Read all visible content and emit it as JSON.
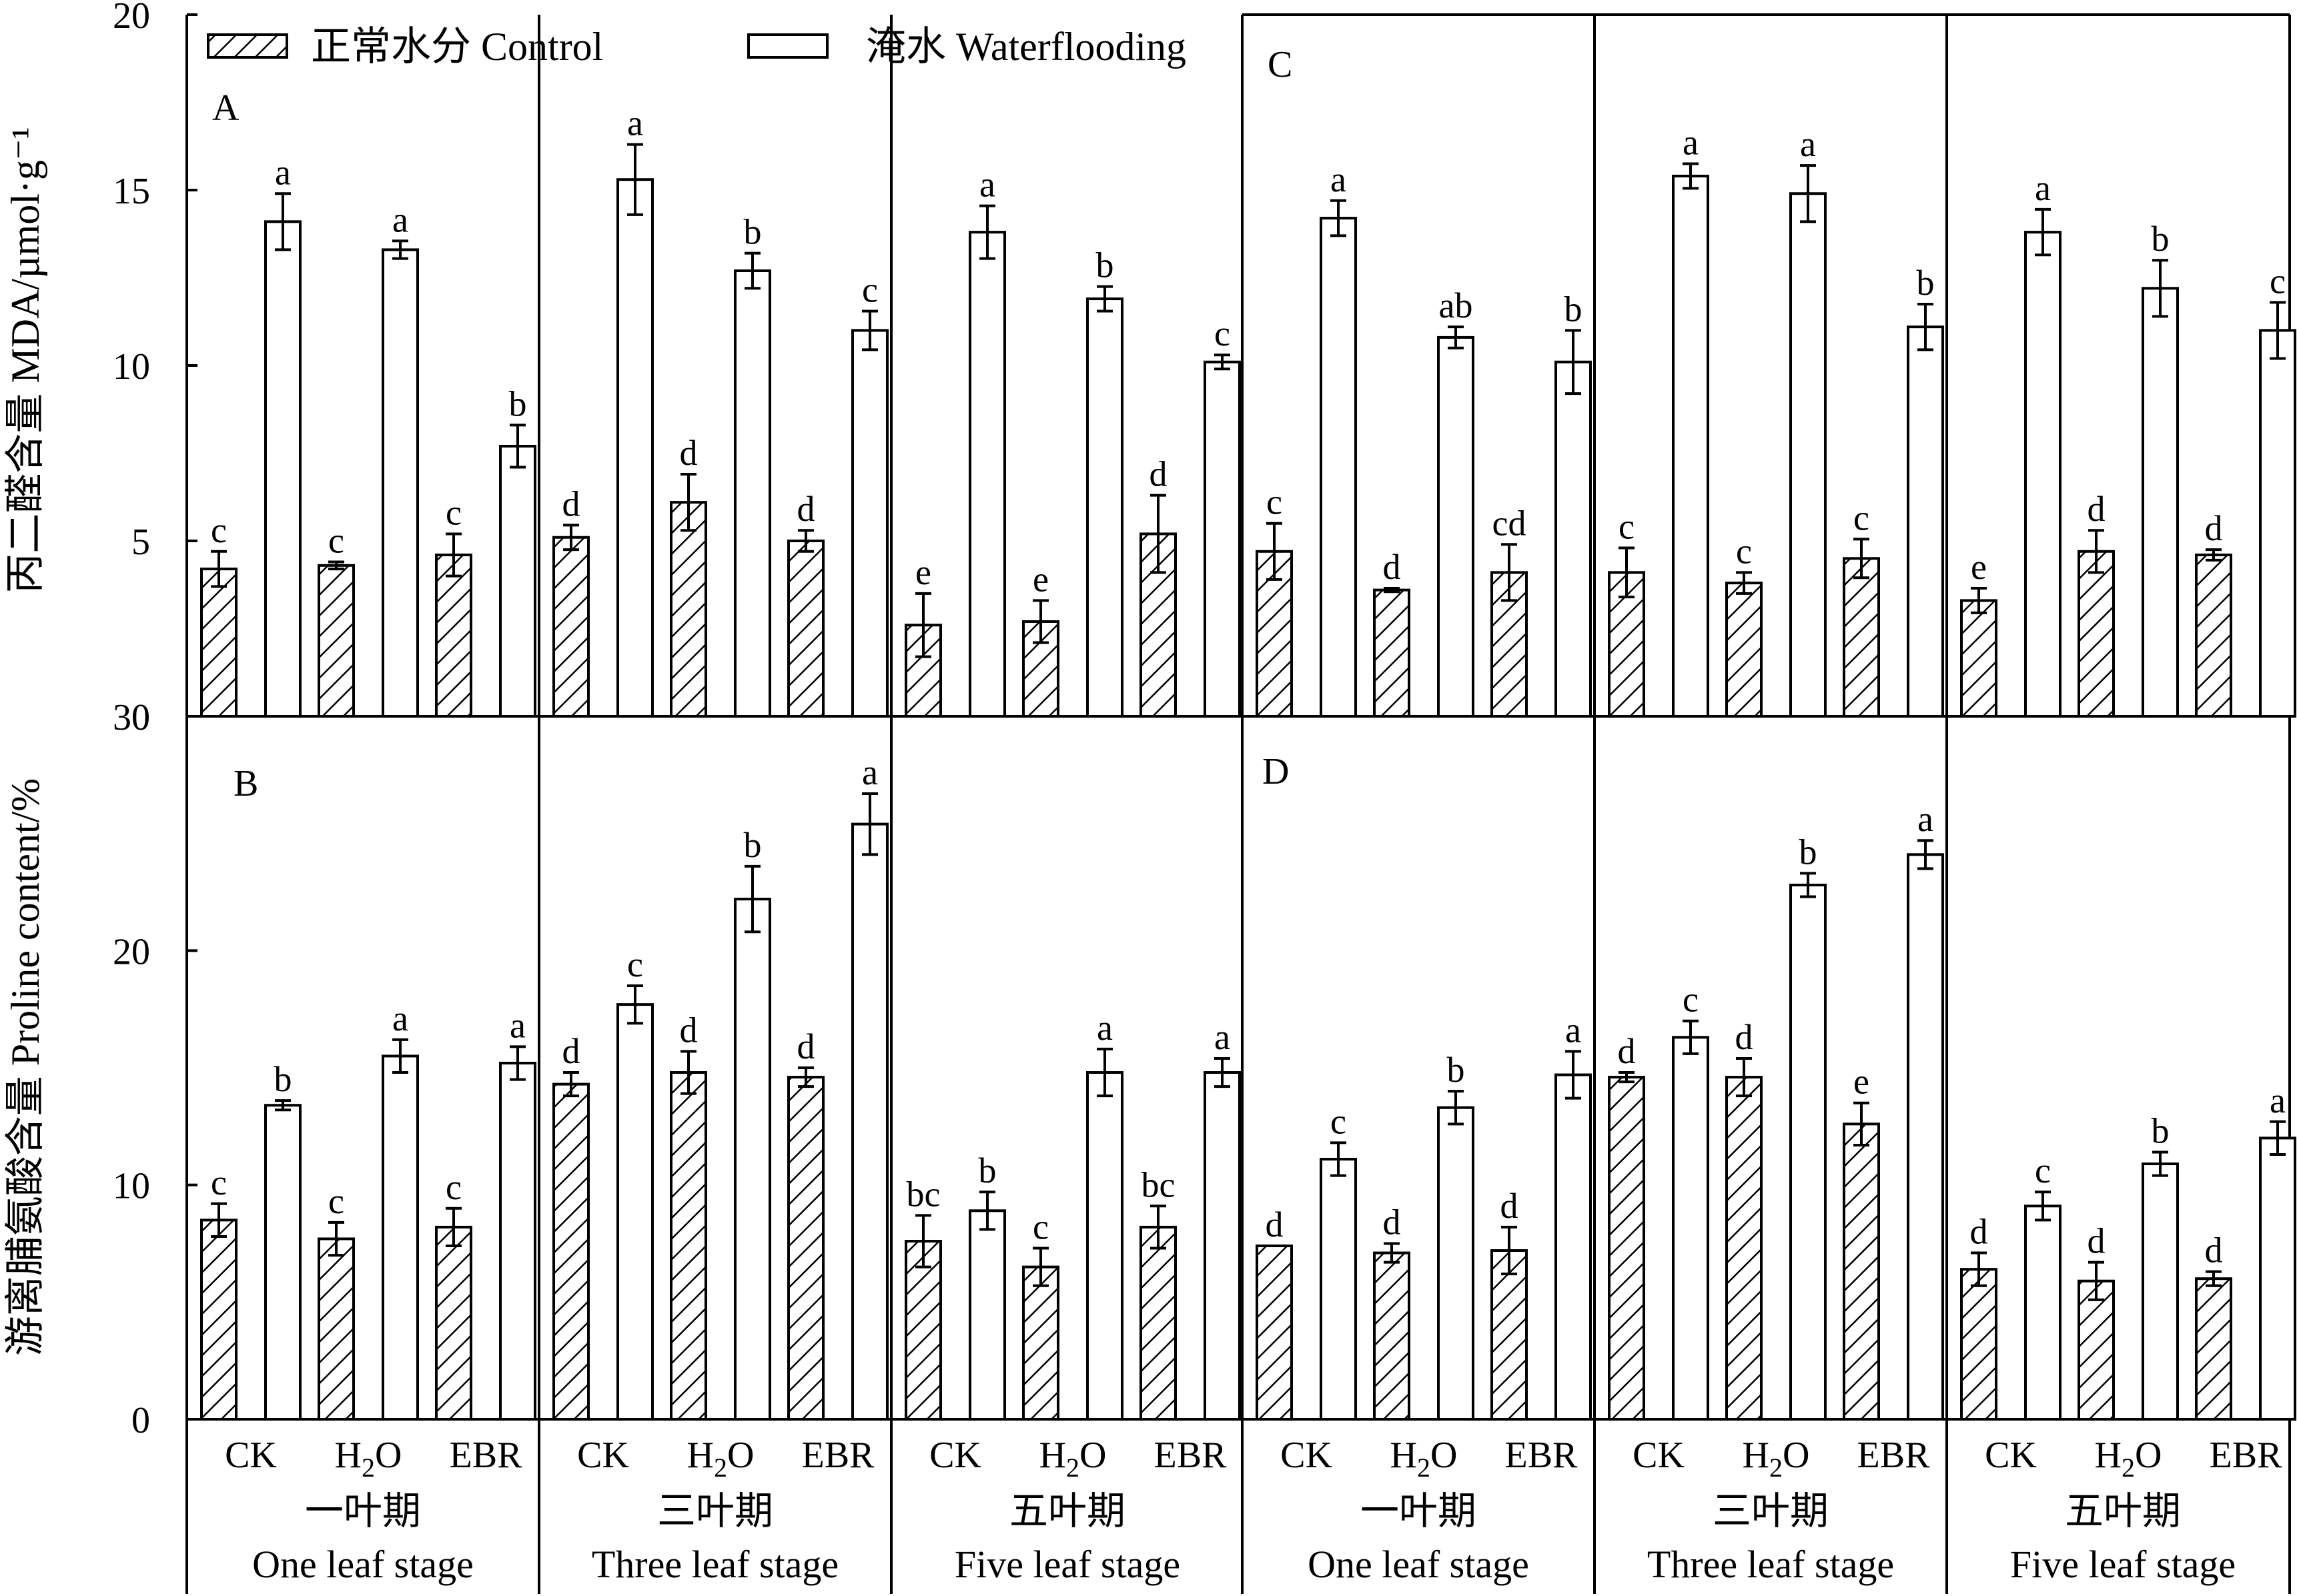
{
  "legend": {
    "control_label": "正常水分 Control",
    "flood_label": "淹水 Waterflooding"
  },
  "y_label_top": "丙二醛含量 MDA/µmol·g⁻¹",
  "y_label_bottom": "游离脯氨酸含量 Proline content/%",
  "treatments": [
    "CK",
    "H2O",
    "EBR"
  ],
  "stages": [
    {
      "cn": "一叶期",
      "en": "One leaf stage"
    },
    {
      "cn": "三叶期",
      "en": "Three  leaf stage"
    },
    {
      "cn": "五叶期",
      "en": "Five leaf stage"
    }
  ],
  "colors": {
    "axis": "#000000",
    "bar_fill": "#ffffff",
    "hatch": "#000000"
  },
  "chart_data": [
    {
      "type": "bar",
      "panel": "A",
      "ylim": [
        0,
        20
      ],
      "yticks": [
        0,
        5,
        10,
        15,
        20
      ],
      "groups": [
        {
          "stage": "One leaf stage",
          "bars": [
            {
              "treatment": "CK",
              "control": 4.2,
              "control_err": 0.5,
              "control_letter": "c",
              "flood": 14.1,
              "flood_err": 0.8,
              "flood_letter": "a"
            },
            {
              "treatment": "H2O",
              "control": 4.3,
              "control_err": 0.1,
              "control_letter": "c",
              "flood": 13.3,
              "flood_err": 0.25,
              "flood_letter": "a"
            },
            {
              "treatment": "EBR",
              "control": 4.6,
              "control_err": 0.6,
              "control_letter": "c",
              "flood": 7.7,
              "flood_err": 0.6,
              "flood_letter": "b"
            }
          ]
        },
        {
          "stage": "Three leaf stage",
          "bars": [
            {
              "treatment": "CK",
              "control": 5.1,
              "control_err": 0.35,
              "control_letter": "d",
              "flood": 15.3,
              "flood_err": 1.0,
              "flood_letter": "a"
            },
            {
              "treatment": "H2O",
              "control": 6.1,
              "control_err": 0.8,
              "control_letter": "d",
              "flood": 12.7,
              "flood_err": 0.5,
              "flood_letter": "b"
            },
            {
              "treatment": "EBR",
              "control": 5.0,
              "control_err": 0.3,
              "control_letter": "d",
              "flood": 11.0,
              "flood_err": 0.55,
              "flood_letter": "c"
            }
          ]
        },
        {
          "stage": "Five leaf stage",
          "bars": [
            {
              "treatment": "CK",
              "control": 2.6,
              "control_err": 0.9,
              "control_letter": "e",
              "flood": 13.8,
              "flood_err": 0.75,
              "flood_letter": "a"
            },
            {
              "treatment": "H2O",
              "control": 2.7,
              "control_err": 0.6,
              "control_letter": "e",
              "flood": 11.9,
              "flood_err": 0.35,
              "flood_letter": "b"
            },
            {
              "treatment": "EBR",
              "control": 5.2,
              "control_err": 1.1,
              "control_letter": "d",
              "flood": 10.1,
              "flood_err": 0.2,
              "flood_letter": "c"
            }
          ]
        }
      ]
    },
    {
      "type": "bar",
      "panel": "C",
      "ylim": [
        0,
        20
      ],
      "yticks": [
        0,
        5,
        10,
        15,
        20
      ],
      "groups": [
        {
          "stage": "One leaf stage",
          "bars": [
            {
              "treatment": "CK",
              "control": 4.7,
              "control_err": 0.8,
              "control_letter": "c",
              "flood": 14.2,
              "flood_err": 0.5,
              "flood_letter": "a"
            },
            {
              "treatment": "H2O",
              "control": 3.6,
              "control_err": 0.05,
              "control_letter": "d",
              "flood": 10.8,
              "flood_err": 0.3,
              "flood_letter": "ab"
            },
            {
              "treatment": "EBR",
              "control": 4.1,
              "control_err": 0.8,
              "control_letter": "cd",
              "flood": 10.1,
              "flood_err": 0.9,
              "flood_letter": "b"
            }
          ]
        },
        {
          "stage": "Three leaf stage",
          "bars": [
            {
              "treatment": "CK",
              "control": 4.1,
              "control_err": 0.7,
              "control_letter": "c",
              "flood": 15.4,
              "flood_err": 0.35,
              "flood_letter": "a"
            },
            {
              "treatment": "H2O",
              "control": 3.8,
              "control_err": 0.3,
              "control_letter": "c",
              "flood": 14.9,
              "flood_err": 0.8,
              "flood_letter": "a"
            },
            {
              "treatment": "EBR",
              "control": 4.5,
              "control_err": 0.55,
              "control_letter": "c",
              "flood": 11.1,
              "flood_err": 0.65,
              "flood_letter": "b"
            }
          ]
        },
        {
          "stage": "Five leaf stage",
          "bars": [
            {
              "treatment": "CK",
              "control": 3.3,
              "control_err": 0.35,
              "control_letter": "e",
              "flood": 13.8,
              "flood_err": 0.65,
              "flood_letter": "a"
            },
            {
              "treatment": "H2O",
              "control": 4.7,
              "control_err": 0.6,
              "control_letter": "d",
              "flood": 12.2,
              "flood_err": 0.8,
              "flood_letter": "b"
            },
            {
              "treatment": "EBR",
              "control": 4.6,
              "control_err": 0.15,
              "control_letter": "d",
              "flood": 11.0,
              "flood_err": 0.8,
              "flood_letter": "c"
            }
          ]
        }
      ]
    },
    {
      "type": "bar",
      "panel": "B",
      "ylim": [
        0,
        30
      ],
      "yticks": [
        0,
        10,
        20,
        30
      ],
      "groups": [
        {
          "stage": "One leaf stage",
          "bars": [
            {
              "treatment": "CK",
              "control": 8.5,
              "control_err": 0.7,
              "control_letter": "c",
              "flood": 13.4,
              "flood_err": 0.2,
              "flood_letter": "b"
            },
            {
              "treatment": "H2O",
              "control": 7.7,
              "control_err": 0.7,
              "control_letter": "c",
              "flood": 15.5,
              "flood_err": 0.7,
              "flood_letter": "a"
            },
            {
              "treatment": "EBR",
              "control": 8.2,
              "control_err": 0.8,
              "control_letter": "c",
              "flood": 15.2,
              "flood_err": 0.7,
              "flood_letter": "a"
            }
          ]
        },
        {
          "stage": "Three leaf stage",
          "bars": [
            {
              "treatment": "CK",
              "control": 14.3,
              "control_err": 0.5,
              "control_letter": "d",
              "flood": 17.7,
              "flood_err": 0.8,
              "flood_letter": "c"
            },
            {
              "treatment": "H2O",
              "control": 14.8,
              "control_err": 0.9,
              "control_letter": "d",
              "flood": 22.2,
              "flood_err": 1.4,
              "flood_letter": "b"
            },
            {
              "treatment": "EBR",
              "control": 14.6,
              "control_err": 0.4,
              "control_letter": "d",
              "flood": 25.4,
              "flood_err": 1.3,
              "flood_letter": "a"
            }
          ]
        },
        {
          "stage": "Five leaf stage",
          "bars": [
            {
              "treatment": "CK",
              "control": 7.6,
              "control_err": 1.1,
              "control_letter": "bc",
              "flood": 8.9,
              "flood_err": 0.8,
              "flood_letter": "b"
            },
            {
              "treatment": "H2O",
              "control": 6.5,
              "control_err": 0.8,
              "control_letter": "c",
              "flood": 14.8,
              "flood_err": 1.0,
              "flood_letter": "a"
            },
            {
              "treatment": "EBR",
              "control": 8.2,
              "control_err": 0.9,
              "control_letter": "bc",
              "flood": 14.8,
              "flood_err": 0.6,
              "flood_letter": "a"
            }
          ]
        }
      ]
    },
    {
      "type": "bar",
      "panel": "D",
      "ylim": [
        0,
        30
      ],
      "yticks": [
        0,
        10,
        20,
        30
      ],
      "groups": [
        {
          "stage": "One leaf stage",
          "bars": [
            {
              "treatment": "CK",
              "control": 7.4,
              "control_err": 0.0,
              "control_letter": "d",
              "flood": 11.1,
              "flood_err": 0.7,
              "flood_letter": "c"
            },
            {
              "treatment": "H2O",
              "control": 7.1,
              "control_err": 0.4,
              "control_letter": "d",
              "flood": 13.3,
              "flood_err": 0.7,
              "flood_letter": "b"
            },
            {
              "treatment": "EBR",
              "control": 7.2,
              "control_err": 1.0,
              "control_letter": "d",
              "flood": 14.7,
              "flood_err": 1.0,
              "flood_letter": "a"
            }
          ]
        },
        {
          "stage": "Three leaf stage",
          "bars": [
            {
              "treatment": "CK",
              "control": 14.6,
              "control_err": 0.2,
              "control_letter": "d",
              "flood": 16.3,
              "flood_err": 0.7,
              "flood_letter": "c"
            },
            {
              "treatment": "H2O",
              "control": 14.6,
              "control_err": 0.8,
              "control_letter": "d",
              "flood": 22.8,
              "flood_err": 0.5,
              "flood_letter": "b"
            },
            {
              "treatment": "EBR",
              "control": 12.6,
              "control_err": 0.9,
              "control_letter": "e",
              "flood": 24.1,
              "flood_err": 0.6,
              "flood_letter": "a"
            }
          ]
        },
        {
          "stage": "Five leaf stage",
          "bars": [
            {
              "treatment": "CK",
              "control": 6.4,
              "control_err": 0.7,
              "control_letter": "d",
              "flood": 9.1,
              "flood_err": 0.6,
              "flood_letter": "c"
            },
            {
              "treatment": "H2O",
              "control": 5.9,
              "control_err": 0.8,
              "control_letter": "d",
              "flood": 10.9,
              "flood_err": 0.5,
              "flood_letter": "b"
            },
            {
              "treatment": "EBR",
              "control": 6.0,
              "control_err": 0.3,
              "control_letter": "d",
              "flood": 12.0,
              "flood_err": 0.7,
              "flood_letter": "a"
            }
          ]
        }
      ]
    }
  ]
}
